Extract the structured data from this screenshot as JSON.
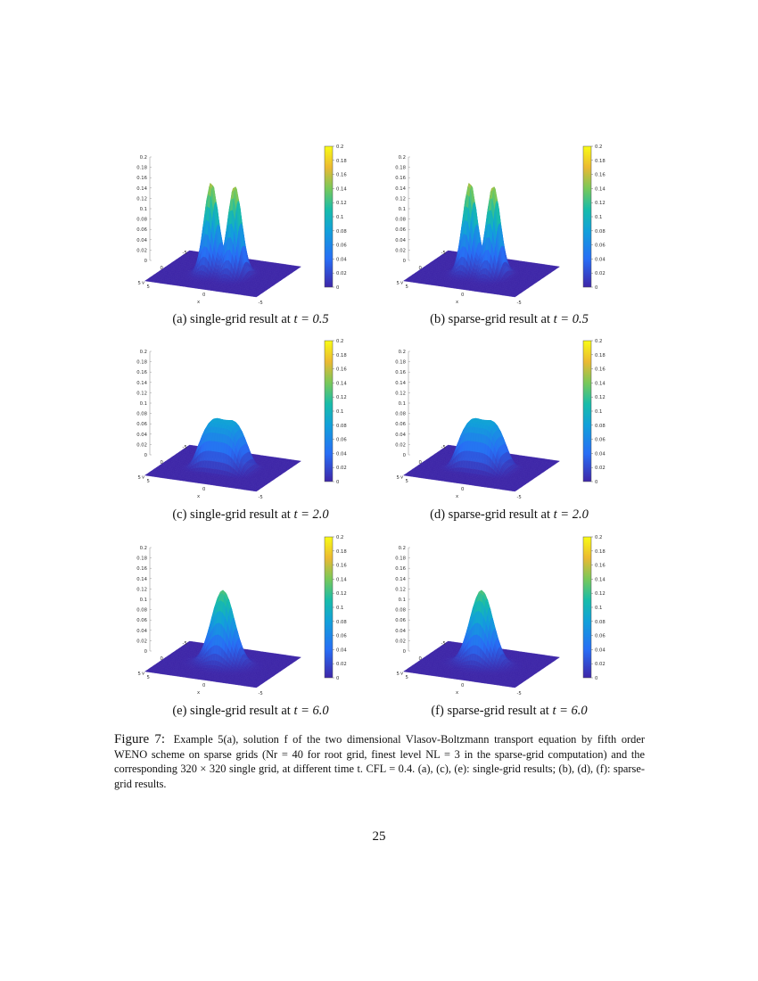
{
  "panels": [
    {
      "id": "a",
      "caption_prefix": "(a) single-grid result at ",
      "time_expr": "t = 0.5",
      "peaks": "double",
      "max": 0.16
    },
    {
      "id": "b",
      "caption_prefix": "(b) sparse-grid result at ",
      "time_expr": "t = 0.5",
      "peaks": "double",
      "max": 0.16
    },
    {
      "id": "c",
      "caption_prefix": "(c) single-grid result at ",
      "time_expr": "t = 2.0",
      "peaks": "plateau",
      "max": 0.085
    },
    {
      "id": "d",
      "caption_prefix": "(d) sparse-grid result at ",
      "time_expr": "t = 2.0",
      "peaks": "plateau",
      "max": 0.085
    },
    {
      "id": "e",
      "caption_prefix": "(e) single-grid result at ",
      "time_expr": "t = 6.0",
      "peaks": "single",
      "max": 0.13
    },
    {
      "id": "f",
      "caption_prefix": "(f) sparse-grid result at ",
      "time_expr": "t = 6.0",
      "peaks": "single",
      "max": 0.13
    }
  ],
  "axes": {
    "z_ticks": [
      "0",
      "0.02",
      "0.04",
      "0.06",
      "0.08",
      "0.1",
      "0.12",
      "0.14",
      "0.16",
      "0.18",
      "0.2"
    ],
    "colorbar_ticks": [
      "0",
      "0.02",
      "0.04",
      "0.06",
      "0.08",
      "0.1",
      "0.12",
      "0.14",
      "0.16",
      "0.18",
      "0.2"
    ],
    "x_label": "x",
    "v_label": "v",
    "x_ticks": [
      "5",
      "0",
      "-5"
    ],
    "v_ticks": [
      "-5",
      "0",
      "5"
    ]
  },
  "figure_caption": {
    "label": "Figure 7:",
    "text": "Example 5(a), solution f of the two dimensional Vlasov-Boltzmann transport equation by fifth order WENO scheme on sparse grids (Nr = 40 for root grid, finest level NL = 3 in the sparse-grid computation) and the corresponding 320 × 320 single grid, at different time t. CFL = 0.4. (a), (c), (e): single-grid results; (b), (d), (f): sparse-grid results."
  },
  "page_number": "25",
  "colors": {
    "low": "#3e26a8",
    "mid": "#1fb5a8",
    "high": "#f9fb15"
  }
}
